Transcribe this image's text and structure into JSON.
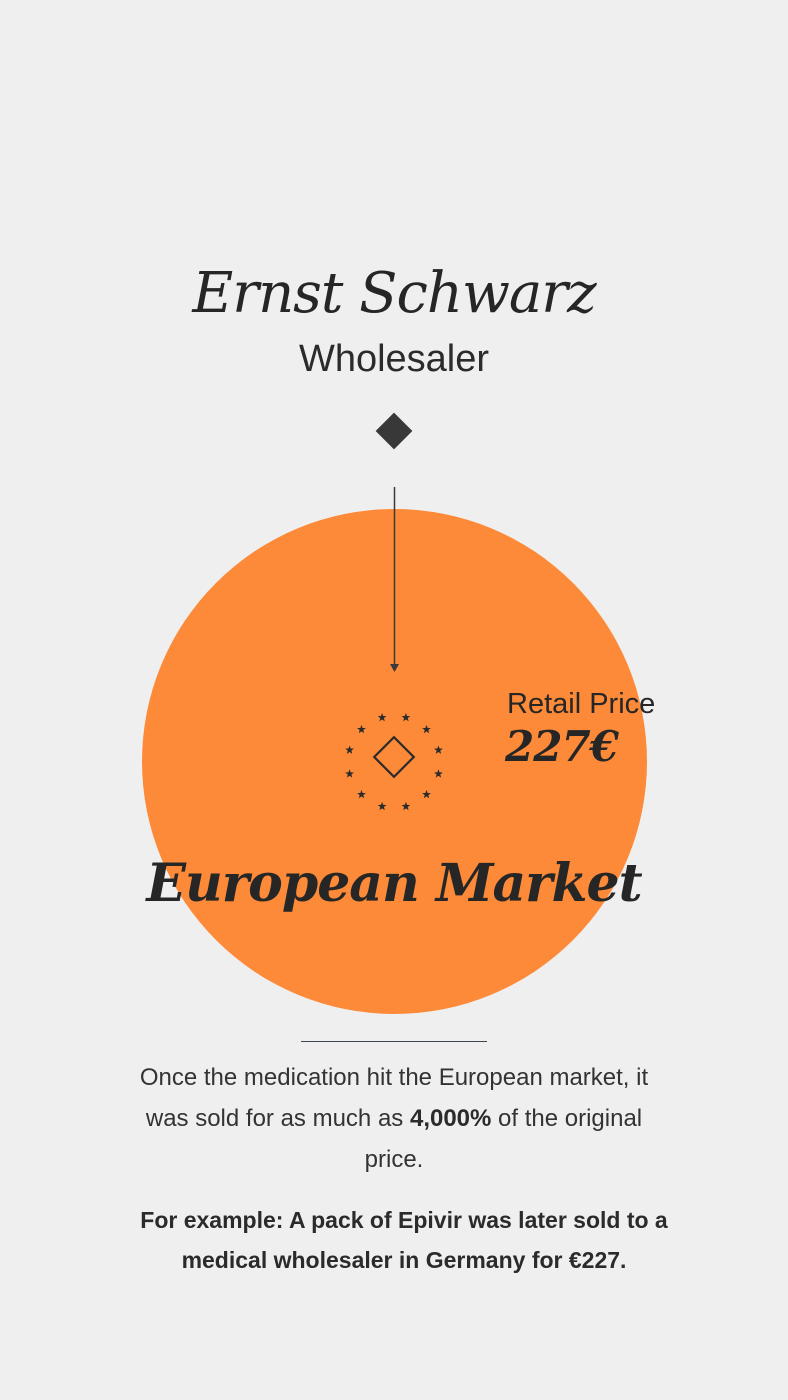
{
  "person": {
    "name": "Ernst Schwarz",
    "role": "Wholesaler"
  },
  "market": {
    "title": "European Market",
    "price_label": "Retail Price",
    "price_value": "227€",
    "icon": "eu-stars-diamond-icon"
  },
  "description": {
    "part1": "Once the medication hit the European market, it was sold for as much as ",
    "highlight": "4,000%",
    "part2": " of the original price."
  },
  "example": "For example: A pack of Epivir was later sold to a medical wholesaler in Germany for €227.",
  "colors": {
    "background": "#efefef",
    "circle": "#fd8a38",
    "ink": "#2b2b2b"
  }
}
